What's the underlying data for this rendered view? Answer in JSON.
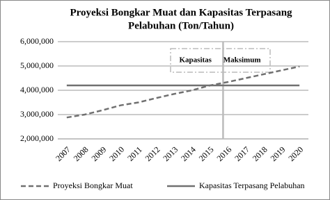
{
  "chart_data": {
    "type": "line",
    "title": [
      "Proyeksi Bongkar Muat dan Kapasitas Terpasang",
      "Pelabuhan (Ton/Tahun)"
    ],
    "categories": [
      "2007",
      "2008",
      "2009",
      "2010",
      "2011",
      "2012",
      "2013",
      "2014",
      "2015",
      "2016",
      "2017",
      "2018",
      "2019",
      "2020"
    ],
    "series": [
      {
        "name": "Proyeksi Bongkar Muat",
        "color": "#707070",
        "dash": true,
        "values": [
          2880000,
          3000000,
          3180000,
          3380000,
          3500000,
          3680000,
          3850000,
          4000000,
          4200000,
          4340000,
          4500000,
          4660000,
          4820000,
          4980000
        ]
      },
      {
        "name": "Kapasitas Terpasang Pelabuhan",
        "color": "#707070",
        "dash": false,
        "values": [
          4200000,
          4200000,
          4200000,
          4200000,
          4200000,
          4200000,
          4200000,
          4200000,
          4200000,
          4200000,
          4200000,
          4200000,
          4200000,
          4200000
        ]
      }
    ],
    "annotation": "Kapasitas Maksimum",
    "ylim": [
      2000000,
      6000000
    ],
    "yticks": [
      {
        "value": 2000000,
        "label": "2,000,000"
      },
      {
        "value": 3000000,
        "label": "3,000,000"
      },
      {
        "value": 4000000,
        "label": "4,000,000"
      },
      {
        "value": 5000000,
        "label": "5,000,000"
      },
      {
        "value": 6000000,
        "label": "6,000,000"
      }
    ],
    "grid": true,
    "legend": "bottom"
  }
}
